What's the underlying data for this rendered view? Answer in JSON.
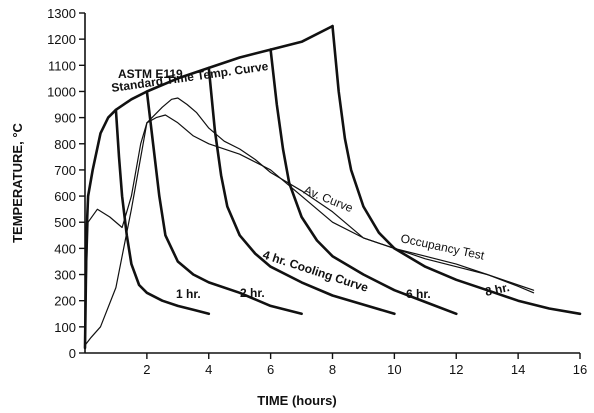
{
  "chart_data": {
    "type": "line",
    "xlabel": "TIME (hours)",
    "ylabel": "TEMPERATURE, °C",
    "xlim": [
      0,
      16
    ],
    "ylim": [
      0,
      1300
    ],
    "xticks": [
      2,
      4,
      6,
      8,
      10,
      12,
      14,
      16
    ],
    "xtick_labels": [
      "2",
      "4",
      "6",
      "8",
      "10",
      "12",
      "14",
      "16"
    ],
    "yticks": [
      0,
      100,
      200,
      300,
      400,
      500,
      600,
      700,
      800,
      900,
      1000,
      1100,
      1200,
      1300
    ],
    "ytick_labels": [
      "0",
      "100",
      "200",
      "300",
      "400",
      "500",
      "600",
      "700",
      "800",
      "900",
      "1000",
      "1100",
      "1200",
      "1300"
    ],
    "grid": false,
    "annotations": {
      "astm_line1": "ASTM E119",
      "astm_line2": "Standard Time Temp. Curve",
      "one_hr": "1 hr.",
      "two_hr": "2 hr.",
      "four_hr": "4 hr. Cooling Curve",
      "six_hr": "6 hr.",
      "eight_hr": "8 hr.",
      "av_curve": "Av. Curve",
      "occupancy": "Occupancy Test"
    },
    "series": [
      {
        "key": "astm",
        "style": "bold",
        "x": [
          0,
          0.05,
          0.1,
          0.25,
          0.5,
          0.75,
          1,
          1.5,
          2,
          3,
          4,
          5,
          6,
          7,
          8
        ],
        "y": [
          20,
          450,
          600,
          700,
          840,
          900,
          930,
          970,
          1000,
          1050,
          1090,
          1130,
          1160,
          1190,
          1250
        ]
      },
      {
        "key": "cool_1",
        "style": "bold",
        "x": [
          1,
          1.1,
          1.2,
          1.35,
          1.5,
          1.75,
          2,
          2.5,
          3,
          3.5,
          4
        ],
        "y": [
          930,
          750,
          600,
          450,
          340,
          260,
          230,
          200,
          180,
          165,
          150
        ]
      },
      {
        "key": "cool_2",
        "style": "bold",
        "x": [
          2,
          2.2,
          2.4,
          2.6,
          3,
          3.5,
          4,
          5,
          6,
          7
        ],
        "y": [
          1000,
          800,
          600,
          450,
          350,
          300,
          270,
          230,
          180,
          150
        ]
      },
      {
        "key": "cool_4",
        "style": "bold",
        "x": [
          4,
          4.2,
          4.4,
          4.6,
          5,
          5.5,
          6,
          7,
          8,
          9,
          10
        ],
        "y": [
          1090,
          850,
          680,
          560,
          450,
          380,
          330,
          270,
          220,
          185,
          150
        ]
      },
      {
        "key": "cool_6",
        "style": "bold",
        "x": [
          6,
          6.2,
          6.4,
          6.6,
          7,
          7.5,
          8,
          9,
          10,
          11,
          12
        ],
        "y": [
          1160,
          950,
          780,
          650,
          520,
          430,
          370,
          300,
          240,
          195,
          150
        ]
      },
      {
        "key": "cool_8",
        "style": "bold",
        "x": [
          8,
          8.2,
          8.4,
          8.6,
          9,
          9.5,
          10,
          11,
          12,
          13,
          14,
          15,
          16
        ],
        "y": [
          1250,
          1000,
          820,
          700,
          560,
          460,
          400,
          330,
          280,
          240,
          200,
          170,
          150
        ]
      },
      {
        "key": "average",
        "style": "thin",
        "x": [
          0,
          0.2,
          0.5,
          1,
          1.5,
          2,
          2.5,
          2.8,
          3,
          3.3,
          3.6,
          4,
          4.5,
          5,
          5.5,
          6,
          7,
          8,
          9,
          10,
          11,
          12,
          13,
          14,
          14.5
        ],
        "y": [
          30,
          60,
          100,
          250,
          550,
          880,
          940,
          970,
          975,
          950,
          920,
          860,
          810,
          780,
          740,
          690,
          620,
          540,
          440,
          400,
          360,
          330,
          300,
          260,
          240
        ]
      },
      {
        "key": "occupancy",
        "style": "thin",
        "x": [
          0,
          0.05,
          0.1,
          0.4,
          0.8,
          1.2,
          1.5,
          1.8,
          2,
          2.3,
          2.6,
          3,
          3.5,
          4,
          5,
          6,
          7,
          8,
          9,
          10,
          11,
          12,
          13,
          14,
          14.5
        ],
        "y": [
          30,
          300,
          500,
          550,
          520,
          480,
          600,
          800,
          880,
          900,
          910,
          880,
          830,
          800,
          760,
          700,
          600,
          500,
          440,
          400,
          370,
          340,
          300,
          255,
          230
        ]
      }
    ]
  }
}
